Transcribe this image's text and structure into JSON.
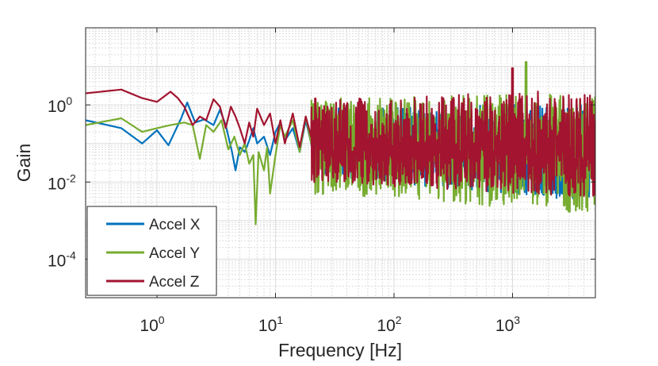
{
  "chart_data": {
    "type": "line",
    "title": "",
    "xlabel": "Frequency [Hz]",
    "ylabel": "Gain",
    "xscale": "log",
    "yscale": "log",
    "xlim": [
      0.25,
      5000
    ],
    "ylim": [
      1e-05,
      100
    ],
    "x_ticks": [
      {
        "base": "10",
        "exp": "0",
        "value": 1
      },
      {
        "base": "10",
        "exp": "1",
        "value": 10
      },
      {
        "base": "10",
        "exp": "2",
        "value": 100
      },
      {
        "base": "10",
        "exp": "3",
        "value": 1000
      }
    ],
    "y_ticks": [
      {
        "base": "10",
        "exp": "0",
        "value": 1
      },
      {
        "base": "10",
        "exp": "-2",
        "value": 0.01
      },
      {
        "base": "10",
        "exp": "-4",
        "value": 0.0001
      }
    ],
    "grid": true,
    "minor_grid": true,
    "legend_position": "bottom-left",
    "series": [
      {
        "name": "Accel X",
        "color": "#0072BD",
        "points": [
          [
            0.25,
            0.4
          ],
          [
            0.5,
            0.25
          ],
          [
            0.75,
            0.1
          ],
          [
            1.0,
            0.22
          ],
          [
            1.25,
            0.09
          ],
          [
            1.6,
            0.45
          ],
          [
            1.8,
            1.15
          ],
          [
            2.1,
            0.35
          ],
          [
            2.5,
            0.42
          ],
          [
            3.0,
            0.3
          ],
          [
            3.4,
            0.75
          ],
          [
            3.8,
            0.3
          ],
          [
            4.3,
            0.06
          ],
          [
            4.6,
            0.02
          ],
          [
            5.0,
            0.08
          ],
          [
            5.5,
            0.06
          ],
          [
            6.0,
            0.12
          ],
          [
            6.5,
            0.25
          ],
          [
            7.0,
            0.1
          ],
          [
            8.0,
            0.15
          ],
          [
            9.0,
            0.05
          ],
          [
            10.0,
            0.2
          ],
          [
            11.0,
            0.35
          ],
          [
            12.0,
            0.12
          ],
          [
            14.0,
            0.25
          ],
          [
            16.0,
            0.06
          ],
          [
            18.0,
            0.4
          ],
          [
            20.0,
            0.1
          ]
        ],
        "noise": {
          "x_from": 20,
          "x_to": 5000,
          "center_start": 0.08,
          "center_end": 0.06,
          "top_start": 0.8,
          "top_end": 1.2,
          "bottom_start": 0.015,
          "bottom_end": 0.003,
          "peak_x": 1000,
          "peak": 1.0
        }
      },
      {
        "name": "Accel Y",
        "color": "#77AC30",
        "points": [
          [
            0.25,
            0.3
          ],
          [
            0.5,
            0.45
          ],
          [
            0.75,
            0.2
          ],
          [
            1.0,
            0.25
          ],
          [
            1.3,
            0.3
          ],
          [
            1.7,
            0.35
          ],
          [
            2.0,
            0.3
          ],
          [
            2.3,
            0.04
          ],
          [
            2.6,
            0.3
          ],
          [
            3.0,
            0.2
          ],
          [
            3.5,
            0.4
          ],
          [
            4.0,
            0.07
          ],
          [
            4.5,
            0.15
          ],
          [
            5.0,
            0.05
          ],
          [
            5.5,
            0.1
          ],
          [
            6.0,
            0.03
          ],
          [
            6.5,
            0.05
          ],
          [
            6.8,
            0.0008
          ],
          [
            7.2,
            0.06
          ],
          [
            8.0,
            0.02
          ],
          [
            8.5,
            0.08
          ],
          [
            9.0,
            0.005
          ],
          [
            10.0,
            0.05
          ],
          [
            11.0,
            0.3
          ],
          [
            12.0,
            0.15
          ],
          [
            14.0,
            0.4
          ],
          [
            16.0,
            0.06
          ],
          [
            18.0,
            0.5
          ],
          [
            20.0,
            0.1
          ]
        ],
        "noise": {
          "x_from": 20,
          "x_to": 5000,
          "center_start": 0.1,
          "center_end": 0.06,
          "top_start": 1.5,
          "top_end": 2.0,
          "bottom_start": 0.005,
          "bottom_end": 0.0015,
          "peak_x": 1300,
          "peak": 13
        }
      },
      {
        "name": "Accel Z",
        "color": "#A2142F",
        "points": [
          [
            0.25,
            2.0
          ],
          [
            0.5,
            2.5
          ],
          [
            0.75,
            1.5
          ],
          [
            1.0,
            1.2
          ],
          [
            1.3,
            2.2
          ],
          [
            1.5,
            1.5
          ],
          [
            1.7,
            0.9
          ],
          [
            2.0,
            0.3
          ],
          [
            2.3,
            0.5
          ],
          [
            2.6,
            0.4
          ],
          [
            3.0,
            1.4
          ],
          [
            3.4,
            0.9
          ],
          [
            3.8,
            0.25
          ],
          [
            4.2,
            0.9
          ],
          [
            4.6,
            0.5
          ],
          [
            5.0,
            0.25
          ],
          [
            5.5,
            0.1
          ],
          [
            6.0,
            0.35
          ],
          [
            6.5,
            0.15
          ],
          [
            7.0,
            0.8
          ],
          [
            8.0,
            0.3
          ],
          [
            9.0,
            0.6
          ],
          [
            10.0,
            0.1
          ],
          [
            11.0,
            0.4
          ],
          [
            12.0,
            0.1
          ],
          [
            14.0,
            0.6
          ],
          [
            16.0,
            0.08
          ],
          [
            18.0,
            0.5
          ],
          [
            20.0,
            0.15
          ]
        ],
        "noise": {
          "x_from": 20,
          "x_to": 5000,
          "center_start": 0.1,
          "center_end": 0.05,
          "top_start": 1.5,
          "top_end": 2.5,
          "bottom_start": 0.01,
          "bottom_end": 0.004,
          "peak_x": 1000,
          "peak": 9
        }
      }
    ]
  }
}
